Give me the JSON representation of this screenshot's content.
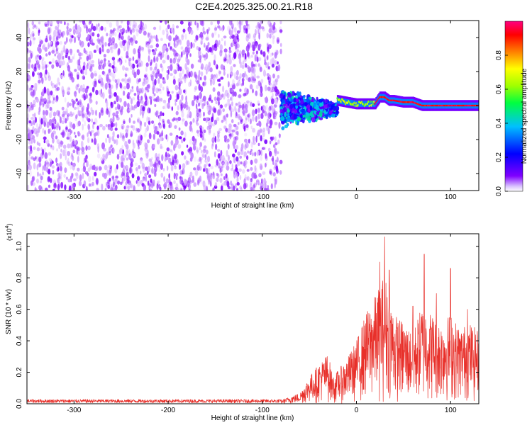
{
  "title": "C2E4.2025.325.00.21.R18",
  "chart_data": [
    {
      "type": "heatmap",
      "title": "C2E4.2025.325.00.21.R18",
      "xlabel": "Height of straight line (km)",
      "ylabel": "Frequency (Hz)",
      "xlim": [
        -350,
        130
      ],
      "ylim": [
        -50,
        50
      ],
      "xticks": [
        -300,
        -200,
        -100,
        0,
        100
      ],
      "xtick_labels": [
        "-300",
        "-200",
        "-100",
        "0",
        "100"
      ],
      "yticks": [
        -40,
        -20,
        0,
        20,
        40
      ],
      "ytick_labels": [
        "-40",
        "-20",
        "0",
        "20",
        "40"
      ],
      "colorbar": {
        "label": "Normalized spectral amplitude",
        "range": [
          0,
          1
        ],
        "ticks": [
          0.0,
          0.2,
          0.4,
          0.6,
          0.8
        ],
        "tick_labels": [
          "0.0",
          "0.2",
          "0.4",
          "0.6",
          "0.8"
        ],
        "colormap": [
          "#ffffff",
          "#8000ff",
          "#0000ff",
          "#00c0ff",
          "#00ff40",
          "#a0ff00",
          "#ffff00",
          "#ff8000",
          "#ff0000",
          "#ff0080"
        ]
      },
      "regions": [
        {
          "name": "noise",
          "x_range": [
            -350,
            -80
          ],
          "freq_range": [
            -50,
            50
          ],
          "amplitude_range": [
            0.02,
            0.12
          ]
        },
        {
          "name": "turbulent",
          "x_range": [
            -80,
            -20
          ],
          "freq_center": -2,
          "freq_halfwidth": [
            12,
            4
          ],
          "amplitude_range": [
            0.1,
            0.4
          ]
        },
        {
          "name": "signal",
          "x_range": [
            -20,
            130
          ],
          "ridge": [
            [
              -20,
              3
            ],
            [
              0,
              1
            ],
            [
              20,
              1
            ],
            [
              25,
              5
            ],
            [
              30,
              5
            ],
            [
              35,
              3
            ],
            [
              40,
              3
            ],
            [
              50,
              2
            ],
            [
              60,
              2
            ],
            [
              70,
              0
            ],
            [
              130,
              0
            ]
          ],
          "amplitude_range": [
            0.5,
            1.0
          ]
        }
      ]
    },
    {
      "type": "line",
      "xlabel": "Height of straight line (km)",
      "ylabel": "SNR (10 * v/v)",
      "y_multiplier_label": "(x10",
      "y_multiplier_exp": "4",
      "y_multiplier_close": ")",
      "xlim": [
        -350,
        130
      ],
      "ylim": [
        0,
        1.08
      ],
      "xticks": [
        -300,
        -200,
        -100,
        0,
        100
      ],
      "xtick_labels": [
        "-300",
        "-200",
        "-100",
        "0",
        "100"
      ],
      "yticks": [
        0.0,
        0.2,
        0.4,
        0.6,
        0.8,
        1.0
      ],
      "ytick_labels": [
        "0.0",
        "0.2",
        "0.4",
        "0.6",
        "0.8",
        "1.0"
      ],
      "series": [
        {
          "name": "SNR",
          "color": "#e8302a",
          "envelope": [
            [
              -350,
              0.02
            ],
            [
              -100,
              0.02
            ],
            [
              -80,
              0.02
            ],
            [
              -60,
              0.06
            ],
            [
              -50,
              0.15
            ],
            [
              -40,
              0.22
            ],
            [
              -30,
              0.28
            ],
            [
              -25,
              0.15
            ],
            [
              -10,
              0.25
            ],
            [
              0,
              0.35
            ],
            [
              10,
              0.5
            ],
            [
              20,
              0.6
            ],
            [
              30,
              0.72
            ],
            [
              35,
              0.62
            ],
            [
              40,
              0.5
            ],
            [
              50,
              0.45
            ],
            [
              60,
              0.4
            ],
            [
              70,
              0.55
            ],
            [
              80,
              0.5
            ],
            [
              90,
              0.45
            ],
            [
              100,
              0.5
            ],
            [
              110,
              0.42
            ],
            [
              120,
              0.45
            ],
            [
              130,
              0.4
            ]
          ],
          "peaks": [
            [
              30,
              1.06
            ],
            [
              25,
              0.9
            ],
            [
              35,
              0.85
            ],
            [
              72,
              0.95
            ],
            [
              100,
              0.86
            ],
            [
              85,
              0.7
            ],
            [
              60,
              0.62
            ],
            [
              118,
              0.6
            ]
          ]
        }
      ]
    }
  ]
}
